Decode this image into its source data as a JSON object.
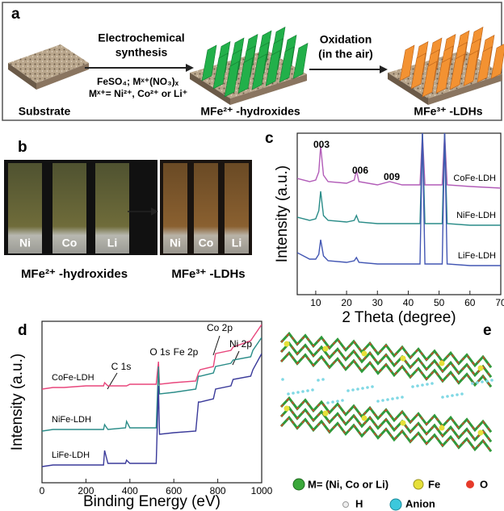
{
  "panel_a": {
    "letter": "a",
    "step1_line1": "Electrochemical",
    "step1_line2": "synthesis",
    "reagents": "FeSO₄; Mˣ⁺(NO₃)ₓ",
    "metals": "Mˣ⁺= Ni²⁺, Co²⁺ or Li⁺",
    "substrate": "Substrate",
    "hydroxides": "MFe²⁺ -hydroxides",
    "step2_line1": "Oxidation",
    "step2_line2": "(in the air)",
    "ldhs": "MFe³⁺ -LDHs"
  },
  "panel_b": {
    "letter": "b",
    "left_labels": [
      "Ni",
      "Co",
      "Li"
    ],
    "right_labels": [
      "Ni",
      "Co",
      "Li"
    ],
    "left_caption": "MFe²⁺ -hydroxides",
    "right_caption": "MFe³⁺ -LDHs"
  },
  "panel_c": {
    "letter": "c"
  },
  "panel_d": {
    "letter": "d"
  },
  "panel_e": {
    "letter": "e",
    "legend": [
      "M= (Ni, Co or Li)",
      "Fe",
      "O",
      "H",
      "Anion"
    ]
  },
  "chart_data": [
    {
      "type": "line",
      "xlabel": "2 Theta (degree)",
      "ylabel": "Intensity (a.u.)",
      "xlim": [
        4,
        70
      ],
      "xticks": [
        10,
        20,
        30,
        40,
        50,
        60,
        70
      ],
      "ylim": [
        0,
        100
      ],
      "annotations": [
        "003",
        "006",
        "009"
      ],
      "x": [
        4,
        8,
        10,
        11,
        11.6,
        12.5,
        14,
        20,
        22.5,
        23.2,
        24,
        30,
        34,
        38,
        43.8,
        44.6,
        45.4,
        51,
        51.8,
        52.6,
        60,
        70
      ],
      "series": [
        {
          "name": "CoFe-LDH",
          "color": "#b25cb8",
          "values": [
            72,
            70,
            71,
            76,
            92,
            74,
            70,
            69,
            71,
            77,
            70,
            68,
            70,
            68,
            68,
            100,
            68,
            68,
            100,
            68,
            67,
            66
          ]
        },
        {
          "name": "NiFe-LDH",
          "color": "#2a8c88",
          "values": [
            48,
            46,
            47,
            52,
            64,
            49,
            46,
            45,
            46,
            49,
            45,
            44,
            44,
            44,
            44,
            100,
            44,
            44,
            100,
            44,
            43,
            43
          ]
        },
        {
          "name": "LiFe-LDH",
          "color": "#4256b3",
          "values": [
            26,
            22,
            22,
            25,
            34,
            24,
            21,
            20,
            21,
            23,
            20,
            19,
            19,
            19,
            19,
            100,
            19,
            19,
            100,
            19,
            18,
            18
          ]
        }
      ]
    },
    {
      "type": "line",
      "xlabel": "Binding Energy (eV)",
      "ylabel": "Intensity (a.u.)",
      "xlim": [
        0,
        1000
      ],
      "xticks": [
        0,
        200,
        400,
        600,
        800,
        1000
      ],
      "ylim": [
        0,
        100
      ],
      "annotations": [
        "C 1s",
        "O 1s",
        "Fe 2p",
        "Co 2p",
        "Ni 2p"
      ],
      "x": [
        0,
        50,
        100,
        200,
        280,
        285,
        300,
        380,
        385,
        400,
        520,
        530,
        535,
        600,
        700,
        712,
        720,
        780,
        790,
        860,
        870,
        950,
        960,
        1000
      ],
      "series": [
        {
          "name": "CoFe-LDH",
          "color": "#e8467c",
          "values": [
            58,
            59,
            59,
            60,
            60,
            62,
            60,
            60,
            60,
            61,
            61,
            75,
            61,
            62,
            63,
            68,
            70,
            72,
            80,
            82,
            84,
            88,
            90,
            98
          ]
        },
        {
          "name": "NiFe-LDH",
          "color": "#2a8c88",
          "values": [
            32,
            33,
            33,
            33,
            33,
            36,
            33,
            34,
            38,
            34,
            34,
            72,
            55,
            56,
            58,
            66,
            66,
            68,
            72,
            74,
            76,
            78,
            82,
            90
          ]
        },
        {
          "name": "LiFe-LDH",
          "color": "#3a3a9a",
          "values": [
            10,
            11,
            11,
            11,
            11,
            20,
            12,
            12,
            14,
            12,
            12,
            60,
            30,
            31,
            32,
            50,
            50,
            52,
            58,
            60,
            64,
            66,
            70,
            80
          ]
        }
      ]
    }
  ]
}
